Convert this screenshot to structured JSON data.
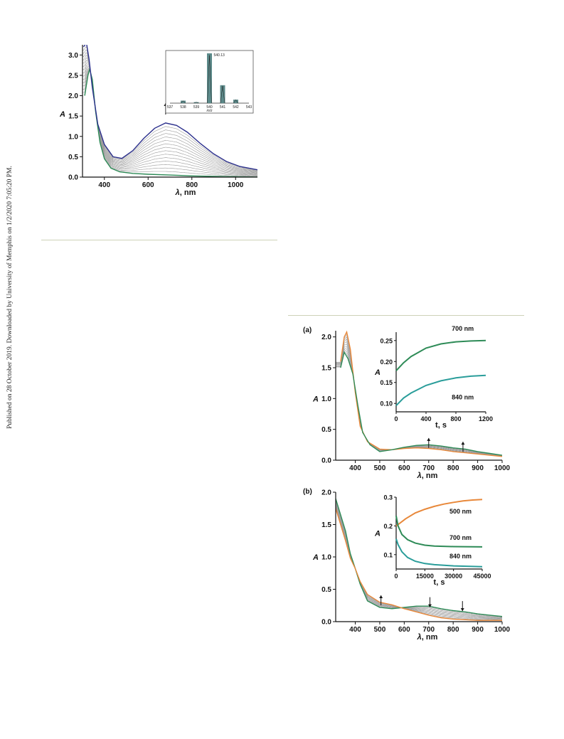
{
  "watermark": "Published on 28 October 2019. Downloaded by University of Memphis on 1/2/2020 7:05:20 PM.",
  "colors": {
    "violet": "#2b2f8c",
    "green": "#2e8b57",
    "teal": "#2a9d9a",
    "orange": "#e8883a",
    "gray": "#9a9a9a",
    "rule": "#cdd2b8"
  },
  "chart_data": [
    {
      "type": "line",
      "id": "fig1",
      "xlabel_sym": "λ",
      "xlabel_unit": ", nm",
      "ylabel": "A",
      "xlim": [
        300,
        1100
      ],
      "ylim": [
        0,
        3.25
      ],
      "xticks": [
        400,
        600,
        800,
        1000
      ],
      "yticks": [
        0.0,
        0.5,
        1.0,
        1.5,
        2.0,
        2.5,
        3.0
      ],
      "ytick_labels": [
        "0.0",
        "0.5",
        "1.0",
        "1.5",
        "2.0",
        "2.5",
        "3.0"
      ],
      "initial_spectrum": [
        [
          310,
          2.0
        ],
        [
          325,
          2.5
        ],
        [
          333,
          2.65
        ],
        [
          345,
          2.4
        ],
        [
          360,
          1.6
        ],
        [
          380,
          0.85
        ],
        [
          400,
          0.45
        ],
        [
          430,
          0.22
        ],
        [
          470,
          0.13
        ],
        [
          530,
          0.09
        ],
        [
          600,
          0.07
        ],
        [
          700,
          0.05
        ],
        [
          800,
          0.03
        ],
        [
          900,
          0.02
        ],
        [
          1000,
          0.01
        ],
        [
          1100,
          0.0
        ]
      ],
      "final_spectrum": [
        [
          305,
          3.2
        ],
        [
          318,
          3.3
        ],
        [
          330,
          2.9
        ],
        [
          345,
          2.2
        ],
        [
          370,
          1.3
        ],
        [
          400,
          0.8
        ],
        [
          440,
          0.5
        ],
        [
          480,
          0.46
        ],
        [
          530,
          0.65
        ],
        [
          580,
          0.95
        ],
        [
          630,
          1.2
        ],
        [
          680,
          1.33
        ],
        [
          730,
          1.27
        ],
        [
          780,
          1.1
        ],
        [
          840,
          0.82
        ],
        [
          900,
          0.57
        ],
        [
          960,
          0.38
        ],
        [
          1020,
          0.26
        ],
        [
          1100,
          0.18
        ]
      ],
      "intermediate_count": 14,
      "arrow_x": 680,
      "inset": {
        "type": "bar",
        "xlabel": "m/z",
        "annotation": "540.13",
        "xticks": [
          537,
          538,
          539,
          540,
          541,
          542,
          543
        ],
        "peaks": [
          [
            538,
            0.05
          ],
          [
            539,
            0.02
          ],
          [
            540,
            1.0
          ],
          [
            541,
            0.36
          ],
          [
            542,
            0.07
          ]
        ]
      }
    },
    {
      "type": "line",
      "id": "fig2a",
      "panel": "(a)",
      "xlabel_sym": "λ",
      "xlabel_unit": ", nm",
      "ylabel": "A",
      "xlim": [
        320,
        1000
      ],
      "ylim": [
        0,
        2.1
      ],
      "xticks": [
        400,
        500,
        600,
        700,
        800,
        900,
        1000
      ],
      "yticks": [
        0.0,
        0.5,
        1.0,
        1.5,
        2.0
      ],
      "ytick_labels": [
        "0.0",
        "0.5",
        "1.0",
        "1.5",
        "2.0"
      ],
      "initial_spectrum": [
        [
          340,
          1.6
        ],
        [
          355,
          2.0
        ],
        [
          365,
          2.08
        ],
        [
          380,
          1.8
        ],
        [
          400,
          1.1
        ],
        [
          420,
          0.55
        ],
        [
          450,
          0.3
        ],
        [
          500,
          0.18
        ],
        [
          550,
          0.17
        ],
        [
          600,
          0.19
        ],
        [
          650,
          0.2
        ],
        [
          700,
          0.19
        ],
        [
          750,
          0.17
        ],
        [
          800,
          0.14
        ],
        [
          850,
          0.12
        ],
        [
          900,
          0.1
        ],
        [
          950,
          0.08
        ],
        [
          1000,
          0.06
        ]
      ],
      "final_spectrum": [
        [
          340,
          1.5
        ],
        [
          355,
          1.75
        ],
        [
          370,
          1.65
        ],
        [
          390,
          1.4
        ],
        [
          410,
          0.9
        ],
        [
          430,
          0.45
        ],
        [
          460,
          0.25
        ],
        [
          500,
          0.14
        ],
        [
          550,
          0.17
        ],
        [
          600,
          0.21
        ],
        [
          650,
          0.24
        ],
        [
          700,
          0.25
        ],
        [
          750,
          0.23
        ],
        [
          800,
          0.2
        ],
        [
          850,
          0.18
        ],
        [
          900,
          0.14
        ],
        [
          950,
          0.11
        ],
        [
          1000,
          0.08
        ]
      ],
      "intermediate_count": 9,
      "arrows": [
        [
          700,
          0.29,
          "up"
        ],
        [
          840,
          0.23,
          "up"
        ]
      ],
      "inset": {
        "xlabel": "t, s",
        "ylabel": "A",
        "xlim": [
          0,
          1200
        ],
        "ylim": [
          0.08,
          0.27
        ],
        "xticks": [
          0,
          400,
          800,
          1200
        ],
        "yticks": [
          0.1,
          0.15,
          0.2,
          0.25
        ],
        "ytick_labels": [
          "0.10",
          "0.15",
          "0.20",
          "0.25"
        ],
        "series": [
          {
            "name": "700 nm",
            "color": "#2e8b57",
            "values": [
              [
                0,
                0.178
              ],
              [
                100,
                0.197
              ],
              [
                200,
                0.212
              ],
              [
                400,
                0.232
              ],
              [
                600,
                0.242
              ],
              [
                800,
                0.247
              ],
              [
                1000,
                0.249
              ],
              [
                1200,
                0.25
              ]
            ]
          },
          {
            "name": "840 nm",
            "color": "#2a9d9a",
            "values": [
              [
                0,
                0.095
              ],
              [
                100,
                0.113
              ],
              [
                200,
                0.125
              ],
              [
                400,
                0.143
              ],
              [
                600,
                0.154
              ],
              [
                800,
                0.161
              ],
              [
                1000,
                0.165
              ],
              [
                1200,
                0.167
              ]
            ]
          }
        ]
      }
    },
    {
      "type": "line",
      "id": "fig2b",
      "panel": "(b)",
      "xlabel_sym": "λ",
      "xlabel_unit": ", nm",
      "ylabel": "A",
      "xlim": [
        320,
        1000
      ],
      "ylim": [
        0,
        2.0
      ],
      "xticks": [
        400,
        500,
        600,
        700,
        800,
        900,
        1000
      ],
      "yticks": [
        0.0,
        0.5,
        1.0,
        1.5,
        2.0
      ],
      "ytick_labels": [
        "0.0",
        "0.5",
        "1.0",
        "1.5",
        "2.0"
      ],
      "initial_spectrum": [
        [
          320,
          1.9
        ],
        [
          340,
          1.65
        ],
        [
          360,
          1.4
        ],
        [
          380,
          1.05
        ],
        [
          400,
          0.82
        ],
        [
          420,
          0.58
        ],
        [
          450,
          0.32
        ],
        [
          500,
          0.22
        ],
        [
          550,
          0.2
        ],
        [
          600,
          0.22
        ],
        [
          650,
          0.24
        ],
        [
          700,
          0.24
        ],
        [
          750,
          0.2
        ],
        [
          800,
          0.17
        ],
        [
          850,
          0.15
        ],
        [
          900,
          0.12
        ],
        [
          950,
          0.1
        ],
        [
          1000,
          0.08
        ]
      ],
      "final_spectrum": [
        [
          320,
          1.75
        ],
        [
          340,
          1.5
        ],
        [
          360,
          1.25
        ],
        [
          380,
          0.98
        ],
        [
          400,
          0.82
        ],
        [
          420,
          0.62
        ],
        [
          450,
          0.42
        ],
        [
          500,
          0.3
        ],
        [
          550,
          0.26
        ],
        [
          600,
          0.2
        ],
        [
          650,
          0.15
        ],
        [
          700,
          0.1
        ],
        [
          750,
          0.06
        ],
        [
          800,
          0.04
        ],
        [
          850,
          0.03
        ],
        [
          900,
          0.02
        ],
        [
          950,
          0.02
        ],
        [
          1000,
          0.02
        ]
      ],
      "intermediate_count": 9,
      "arrows": [
        [
          505,
          0.34,
          "up"
        ],
        [
          705,
          0.29,
          "down"
        ],
        [
          838,
          0.23,
          "down"
        ]
      ],
      "inset": {
        "xlabel": "t, s",
        "ylabel": "A",
        "xlim": [
          0,
          45000
        ],
        "ylim": [
          0.05,
          0.3
        ],
        "xticks": [
          0,
          15000,
          30000,
          45000
        ],
        "yticks": [
          0.1,
          0.2,
          0.3
        ],
        "ytick_labels": [
          "0.1",
          "0.2",
          "0.3"
        ],
        "series": [
          {
            "name": "500 nm",
            "color": "#e8883a",
            "values": [
              [
                0,
                0.2
              ],
              [
                2000,
                0.21
              ],
              [
                5000,
                0.225
              ],
              [
                10000,
                0.245
              ],
              [
                15000,
                0.258
              ],
              [
                20000,
                0.268
              ],
              [
                25000,
                0.276
              ],
              [
                30000,
                0.282
              ],
              [
                35000,
                0.287
              ],
              [
                40000,
                0.29
              ],
              [
                45000,
                0.292
              ]
            ]
          },
          {
            "name": "700 nm",
            "color": "#2e8b57",
            "values": [
              [
                0,
                0.235
              ],
              [
                1000,
                0.2
              ],
              [
                3000,
                0.17
              ],
              [
                6000,
                0.152
              ],
              [
                10000,
                0.14
              ],
              [
                15000,
                0.133
              ],
              [
                20000,
                0.13
              ],
              [
                30000,
                0.128
              ],
              [
                45000,
                0.127
              ]
            ]
          },
          {
            "name": "840 nm",
            "color": "#2a9d9a",
            "values": [
              [
                0,
                0.155
              ],
              [
                1000,
                0.135
              ],
              [
                3000,
                0.11
              ],
              [
                6000,
                0.09
              ],
              [
                10000,
                0.077
              ],
              [
                15000,
                0.069
              ],
              [
                20000,
                0.065
              ],
              [
                30000,
                0.061
              ],
              [
                45000,
                0.058
              ]
            ]
          }
        ]
      }
    }
  ]
}
